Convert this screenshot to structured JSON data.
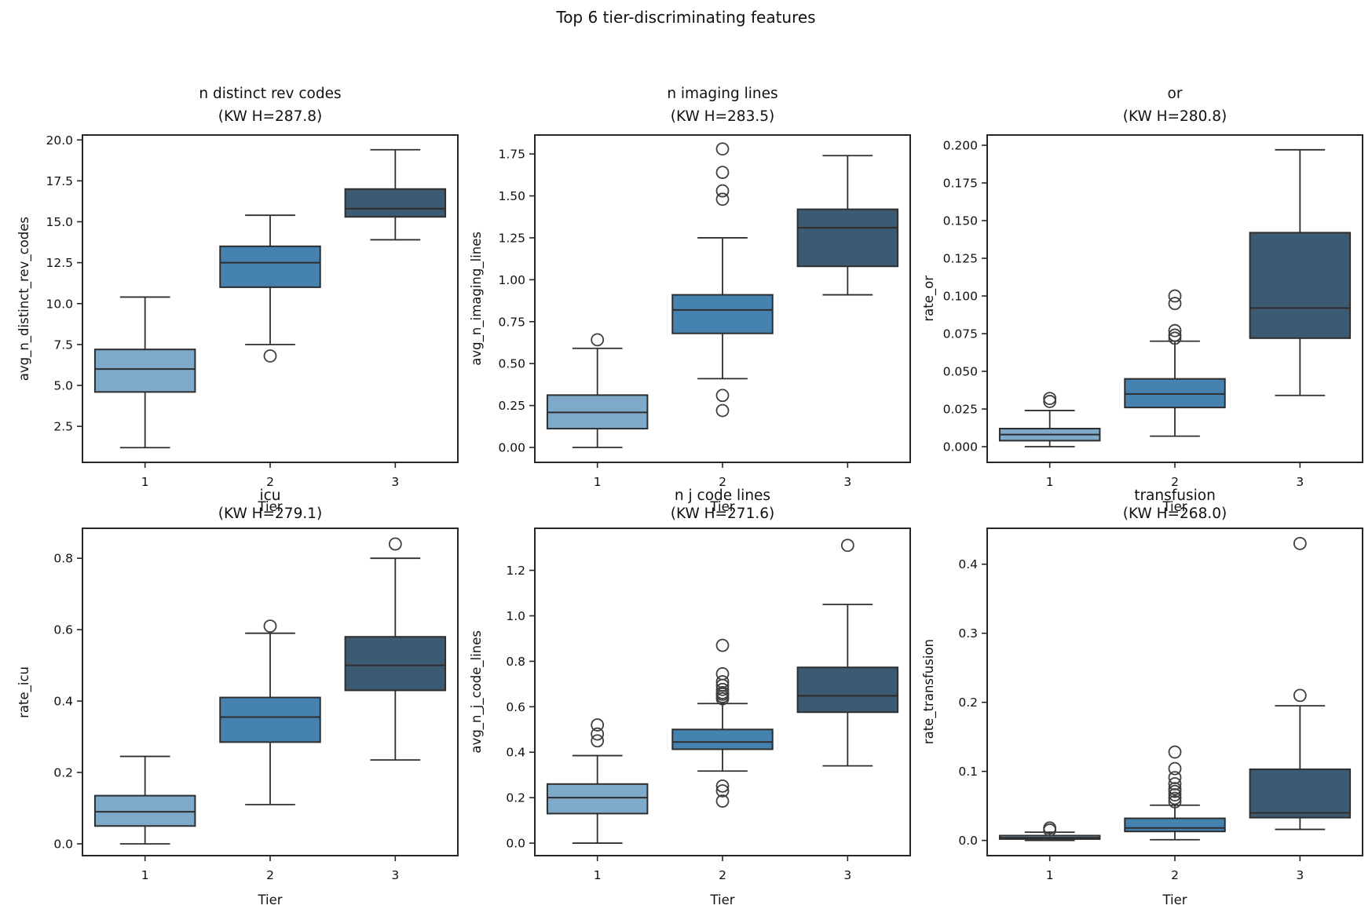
{
  "figure": {
    "title": "Top 6 tier-discriminating features"
  },
  "palette": {
    "tier_colors": [
      "#7EA9C9",
      "#4682B0",
      "#3D5A73"
    ],
    "box_edge": "#2E2E2E",
    "outlier_edge": "#3F3F3F",
    "spine": "#262626",
    "text": "#111111",
    "background": "#FFFFFF"
  },
  "chart_data": [
    {
      "type": "box",
      "title": "n distinct rev codes",
      "subtitle": "(KW H=287.8)",
      "ylabel": "avg_n_distinct_rev_codes",
      "xlabel": "Tier",
      "categories": [
        "1",
        "2",
        "3"
      ],
      "ylim": [
        0.3,
        20.3
      ],
      "ytick_values": [
        2.5,
        5.0,
        7.5,
        10.0,
        12.5,
        15.0,
        17.5,
        20.0
      ],
      "ytick_labels": [
        "2.5",
        "5.0",
        "7.5",
        "10.0",
        "12.5",
        "15.0",
        "17.5",
        "20.0"
      ],
      "boxes": [
        {
          "tier": "1",
          "whislo": 1.2,
          "q1": 4.6,
          "med": 6.0,
          "q3": 7.2,
          "whishi": 10.4,
          "outliers": []
        },
        {
          "tier": "2",
          "whislo": 7.5,
          "q1": 11.0,
          "med": 12.5,
          "q3": 13.5,
          "whishi": 15.4,
          "outliers": [
            6.8
          ]
        },
        {
          "tier": "3",
          "whislo": 13.9,
          "q1": 15.3,
          "med": 15.8,
          "q3": 17.0,
          "whishi": 19.4,
          "outliers": []
        }
      ]
    },
    {
      "type": "box",
      "title": "n imaging lines",
      "subtitle": "(KW H=283.5)",
      "ylabel": "avg_n_imaging_lines",
      "xlabel": "Tier",
      "categories": [
        "1",
        "2",
        "3"
      ],
      "ylim": [
        -0.089,
        1.863
      ],
      "ytick_values": [
        0.0,
        0.25,
        0.5,
        0.75,
        1.0,
        1.25,
        1.5,
        1.75
      ],
      "ytick_labels": [
        "0.00",
        "0.25",
        "0.50",
        "0.75",
        "1.00",
        "1.25",
        "1.50",
        "1.75"
      ],
      "boxes": [
        {
          "tier": "1",
          "whislo": 0.0,
          "q1": 0.112,
          "med": 0.209,
          "q3": 0.312,
          "whishi": 0.591,
          "outliers": [
            0.642
          ]
        },
        {
          "tier": "2",
          "whislo": 0.41,
          "q1": 0.68,
          "med": 0.82,
          "q3": 0.91,
          "whishi": 1.25,
          "outliers": [
            0.22,
            0.31,
            1.48,
            1.53,
            1.64,
            1.78
          ]
        },
        {
          "tier": "3",
          "whislo": 0.91,
          "q1": 1.08,
          "med": 1.31,
          "q3": 1.42,
          "whishi": 1.74,
          "outliers": []
        }
      ]
    },
    {
      "type": "box",
      "title": "or",
      "subtitle": "(KW H=280.8)",
      "ylabel": "rate_or",
      "xlabel": "Tier",
      "categories": [
        "1",
        "2",
        "3"
      ],
      "ylim": [
        -0.0104,
        0.2068
      ],
      "ytick_values": [
        0.0,
        0.025,
        0.05,
        0.075,
        0.1,
        0.125,
        0.15,
        0.175,
        0.2
      ],
      "ytick_labels": [
        "0.000",
        "0.025",
        "0.050",
        "0.075",
        "0.100",
        "0.125",
        "0.150",
        "0.175",
        "0.200"
      ],
      "boxes": [
        {
          "tier": "1",
          "whislo": 0.0,
          "q1": 0.004,
          "med": 0.008,
          "q3": 0.012,
          "whishi": 0.024,
          "outliers": [
            0.03,
            0.032
          ]
        },
        {
          "tier": "2",
          "whislo": 0.007,
          "q1": 0.026,
          "med": 0.035,
          "q3": 0.045,
          "whishi": 0.07,
          "outliers": [
            0.072,
            0.074,
            0.077,
            0.095,
            0.1
          ]
        },
        {
          "tier": "3",
          "whislo": 0.034,
          "q1": 0.072,
          "med": 0.092,
          "q3": 0.142,
          "whishi": 0.197,
          "outliers": []
        }
      ]
    },
    {
      "type": "box",
      "title": "icu",
      "subtitle": "(KW H=279.1)",
      "ylabel": "rate_icu",
      "xlabel": "Tier",
      "categories": [
        "1",
        "2",
        "3"
      ],
      "ylim": [
        -0.033,
        0.884
      ],
      "ytick_values": [
        0.0,
        0.2,
        0.4,
        0.6,
        0.8
      ],
      "ytick_labels": [
        "0.0",
        "0.2",
        "0.4",
        "0.6",
        "0.8"
      ],
      "boxes": [
        {
          "tier": "1",
          "whislo": 0.0,
          "q1": 0.05,
          "med": 0.09,
          "q3": 0.135,
          "whishi": 0.245,
          "outliers": []
        },
        {
          "tier": "2",
          "whislo": 0.11,
          "q1": 0.285,
          "med": 0.355,
          "q3": 0.41,
          "whishi": 0.59,
          "outliers": [
            0.61
          ]
        },
        {
          "tier": "3",
          "whislo": 0.235,
          "q1": 0.43,
          "med": 0.5,
          "q3": 0.58,
          "whishi": 0.8,
          "outliers": [
            0.84
          ]
        }
      ]
    },
    {
      "type": "box",
      "title": "n j code lines",
      "subtitle": "(KW H=271.6)",
      "ylabel": "avg_n_j_code_lines",
      "xlabel": "Tier",
      "categories": [
        "1",
        "2",
        "3"
      ],
      "ylim": [
        -0.055,
        1.385
      ],
      "ytick_values": [
        0.0,
        0.2,
        0.4,
        0.6,
        0.8,
        1.0,
        1.2
      ],
      "ytick_labels": [
        "0.0",
        "0.2",
        "0.4",
        "0.6",
        "0.8",
        "1.0",
        "1.2"
      ],
      "boxes": [
        {
          "tier": "1",
          "whislo": 0.0,
          "q1": 0.13,
          "med": 0.2,
          "q3": 0.26,
          "whishi": 0.385,
          "outliers": [
            0.45,
            0.48,
            0.52
          ]
        },
        {
          "tier": "2",
          "whislo": 0.317,
          "q1": 0.413,
          "med": 0.445,
          "q3": 0.5,
          "whishi": 0.614,
          "outliers": [
            0.185,
            0.23,
            0.251,
            0.635,
            0.645,
            0.655,
            0.662,
            0.676,
            0.694,
            0.71,
            0.745,
            0.87
          ]
        },
        {
          "tier": "3",
          "whislo": 0.34,
          "q1": 0.576,
          "med": 0.648,
          "q3": 0.773,
          "whishi": 1.05,
          "outliers": [
            1.31
          ]
        }
      ]
    },
    {
      "type": "box",
      "title": "transfusion",
      "subtitle": "(KW H=268.0)",
      "ylabel": "rate_transfusion",
      "xlabel": "Tier",
      "categories": [
        "1",
        "2",
        "3"
      ],
      "ylim": [
        -0.022,
        0.452
      ],
      "ytick_values": [
        0.0,
        0.1,
        0.2,
        0.3,
        0.4
      ],
      "ytick_labels": [
        "0.0",
        "0.1",
        "0.2",
        "0.3",
        "0.4"
      ],
      "boxes": [
        {
          "tier": "1",
          "whislo": 0.0,
          "q1": 0.002,
          "med": 0.004,
          "q3": 0.007,
          "whishi": 0.012,
          "outliers": [
            0.015,
            0.018
          ]
        },
        {
          "tier": "2",
          "whislo": 0.001,
          "q1": 0.013,
          "med": 0.018,
          "q3": 0.032,
          "whishi": 0.051,
          "outliers": [
            0.056,
            0.061,
            0.066,
            0.071,
            0.075,
            0.082,
            0.091,
            0.104,
            0.128
          ]
        },
        {
          "tier": "3",
          "whislo": 0.016,
          "q1": 0.033,
          "med": 0.04,
          "q3": 0.103,
          "whishi": 0.195,
          "outliers": [
            0.21,
            0.43
          ]
        }
      ]
    }
  ]
}
